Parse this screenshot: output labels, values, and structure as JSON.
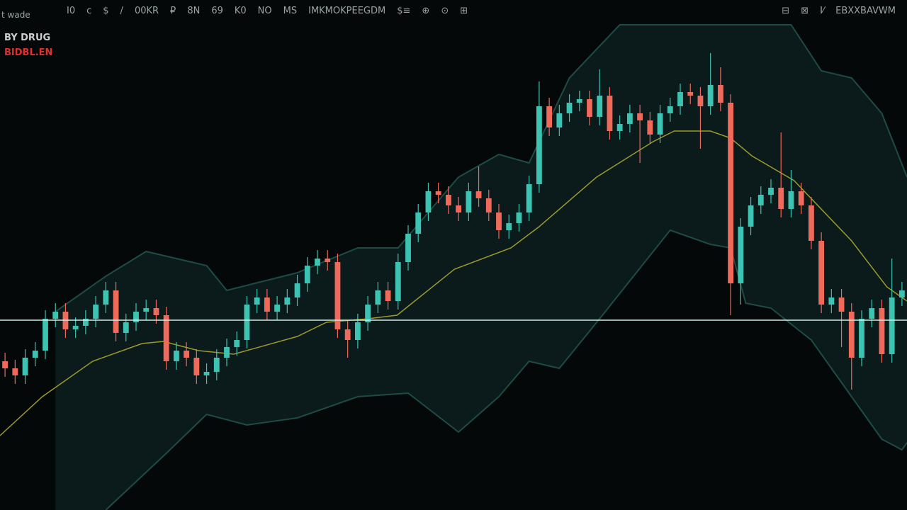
{
  "toolbar": {
    "corner": "t wade",
    "left": [
      "I0",
      "c",
      "$",
      "/",
      "00KR",
      "₽",
      "8N",
      "69",
      "K0",
      "NO",
      "MS",
      "IMKMOKPEEGDM",
      "$≡",
      "⊕",
      "⊙",
      "⊞"
    ],
    "right": [
      "⊟",
      "⊠",
      "I⁄",
      "EBXXBAVWM"
    ]
  },
  "legend": {
    "symbol": "BY DRUG",
    "indicator": "BIDBL.EN"
  },
  "chart_data": {
    "type": "candlestick",
    "ylim": [
      0,
      720
    ],
    "xlim": [
      -0.5,
      89.5
    ],
    "up_color": "#3cc3b1",
    "down_color": "#f06a5c",
    "open": [
      210,
      200,
      190,
      215,
      225,
      270,
      280,
      255,
      260,
      270,
      290,
      310,
      250,
      265,
      280,
      285,
      275,
      210,
      225,
      215,
      190,
      195,
      215,
      230,
      240,
      290,
      300,
      280,
      290,
      300,
      320,
      345,
      355,
      350,
      255,
      240,
      265,
      290,
      310,
      295,
      350,
      390,
      420,
      450,
      445,
      430,
      420,
      450,
      440,
      420,
      395,
      405,
      420,
      460,
      570,
      540,
      560,
      575,
      580,
      555,
      585,
      535,
      545,
      560,
      550,
      530,
      560,
      570,
      590,
      585,
      570,
      600,
      575,
      320,
      400,
      430,
      445,
      455,
      425,
      450,
      430,
      380,
      290,
      300,
      280,
      215,
      270,
      285,
      220,
      300
    ],
    "high": [
      222,
      212,
      227,
      237,
      282,
      292,
      292,
      272,
      282,
      302,
      322,
      322,
      277,
      292,
      297,
      297,
      287,
      237,
      237,
      227,
      207,
      227,
      242,
      252,
      302,
      312,
      312,
      302,
      312,
      332,
      357,
      367,
      367,
      362,
      267,
      277,
      302,
      322,
      322,
      362,
      402,
      432,
      462,
      462,
      457,
      442,
      462,
      485,
      452,
      432,
      417,
      432,
      472,
      605,
      582,
      572,
      587,
      592,
      592,
      622,
      597,
      557,
      572,
      572,
      562,
      572,
      582,
      602,
      602,
      597,
      645,
      625,
      587,
      412,
      442,
      457,
      467,
      533,
      480,
      462,
      442,
      392,
      312,
      312,
      292,
      282,
      297,
      297,
      355,
      322
    ],
    "low": [
      188,
      178,
      178,
      203,
      213,
      258,
      243,
      243,
      248,
      258,
      278,
      238,
      238,
      253,
      268,
      263,
      198,
      198,
      203,
      178,
      178,
      183,
      203,
      218,
      228,
      278,
      268,
      268,
      278,
      288,
      308,
      333,
      338,
      243,
      215,
      228,
      253,
      278,
      283,
      283,
      338,
      378,
      408,
      433,
      418,
      408,
      408,
      428,
      408,
      383,
      383,
      393,
      408,
      448,
      528,
      528,
      548,
      563,
      543,
      543,
      523,
      523,
      533,
      490,
      518,
      518,
      548,
      558,
      573,
      510,
      558,
      563,
      275,
      290,
      388,
      418,
      433,
      413,
      413,
      418,
      368,
      278,
      278,
      230,
      170,
      203,
      258,
      208,
      208,
      288
    ],
    "close": [
      200,
      190,
      215,
      225,
      270,
      280,
      255,
      260,
      270,
      290,
      310,
      250,
      265,
      280,
      285,
      275,
      210,
      225,
      215,
      190,
      195,
      215,
      230,
      240,
      290,
      300,
      280,
      290,
      300,
      320,
      345,
      355,
      350,
      255,
      240,
      265,
      290,
      310,
      295,
      350,
      390,
      420,
      450,
      445,
      430,
      420,
      450,
      440,
      420,
      395,
      405,
      420,
      460,
      570,
      540,
      560,
      575,
      580,
      555,
      585,
      535,
      545,
      560,
      550,
      530,
      560,
      570,
      590,
      585,
      570,
      600,
      575,
      320,
      400,
      430,
      445,
      455,
      425,
      450,
      430,
      380,
      290,
      300,
      280,
      215,
      270,
      285,
      220,
      300,
      310
    ],
    "bands": {
      "color": "#1f4b45",
      "fill": "#0b1b1b",
      "upper": {
        "x": [
          5,
          10,
          14,
          20,
          22,
          29,
          35,
          39,
          45,
          49,
          52,
          56,
          61,
          78,
          81,
          84,
          87,
          89.5
        ],
        "values": [
          280,
          330,
          365,
          345,
          310,
          335,
          370,
          370,
          470,
          502,
          490,
          610,
          685,
          685,
          620,
          610,
          560,
          470
        ]
      },
      "lower": {
        "x": [
          10,
          16,
          20,
          24,
          29,
          35,
          40,
          45,
          49,
          52,
          55,
          59,
          66,
          70,
          72,
          73.5,
          76,
          80,
          84,
          87,
          89,
          89.5
        ],
        "values": [
          0,
          80,
          135,
          120,
          130,
          160,
          165,
          110,
          160,
          210,
          200,
          270,
          395,
          375,
          370,
          292,
          285,
          240,
          160,
          100,
          85,
          95
        ]
      },
      "middle": {
        "color": "#9c9a2c",
        "x": [
          -0.5,
          3.7,
          8.7,
          13.6,
          15.7,
          19.2,
          22.7,
          29,
          31.9,
          36,
          38.9,
          44.6,
          50.2,
          53,
          58.7,
          64.3,
          66.4,
          70,
          72,
          74.1,
          78.3,
          84,
          87.5,
          89.5
        ],
        "values": [
          105,
          160,
          210,
          235,
          238,
          225,
          220,
          245,
          265,
          270,
          275,
          340,
          370,
          400,
          470,
          520,
          535,
          535,
          525,
          500,
          465,
          380,
          315,
          295
        ]
      }
    },
    "price_line": {
      "value": 268,
      "color": "#cfeee6"
    }
  }
}
